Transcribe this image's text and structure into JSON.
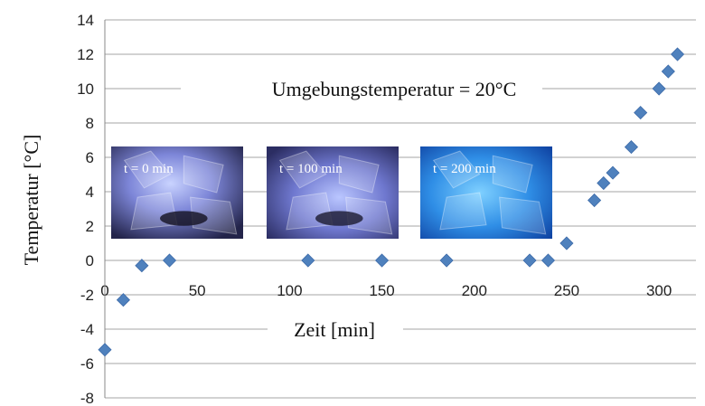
{
  "chart_data": {
    "type": "scatter",
    "title": "",
    "xlabel": "Zeit  [min]",
    "ylabel": "Temperatur [°C]",
    "xlim": [
      0,
      320
    ],
    "ylim": [
      -8,
      14
    ],
    "xticks": [
      0,
      50,
      100,
      150,
      200,
      250,
      300
    ],
    "yticks": [
      -8,
      -6,
      -4,
      -2,
      0,
      2,
      4,
      6,
      8,
      10,
      12,
      14
    ],
    "grid": "horizontal",
    "marker": "diamond",
    "color": "#4f81bd",
    "points": [
      {
        "x": 0,
        "y": -5.2
      },
      {
        "x": 10,
        "y": -2.3
      },
      {
        "x": 20,
        "y": -0.3
      },
      {
        "x": 35,
        "y": 0.0
      },
      {
        "x": 110,
        "y": 0.0
      },
      {
        "x": 150,
        "y": 0.0
      },
      {
        "x": 185,
        "y": 0.0
      },
      {
        "x": 230,
        "y": 0.0
      },
      {
        "x": 240,
        "y": 0.0
      },
      {
        "x": 250,
        "y": 1.0
      },
      {
        "x": 265,
        "y": 3.5
      },
      {
        "x": 270,
        "y": 4.5
      },
      {
        "x": 275,
        "y": 5.1
      },
      {
        "x": 285,
        "y": 6.6
      },
      {
        "x": 290,
        "y": 8.6
      },
      {
        "x": 300,
        "y": 10.0
      },
      {
        "x": 305,
        "y": 11.0
      },
      {
        "x": 310,
        "y": 12.0
      }
    ],
    "annotations": [
      {
        "text": "Umgebungstemperatur  = 20°C"
      }
    ],
    "insets": [
      {
        "label": "t = 0 min"
      },
      {
        "label": "t = 100 min"
      },
      {
        "label": "t = 200 min"
      }
    ]
  }
}
